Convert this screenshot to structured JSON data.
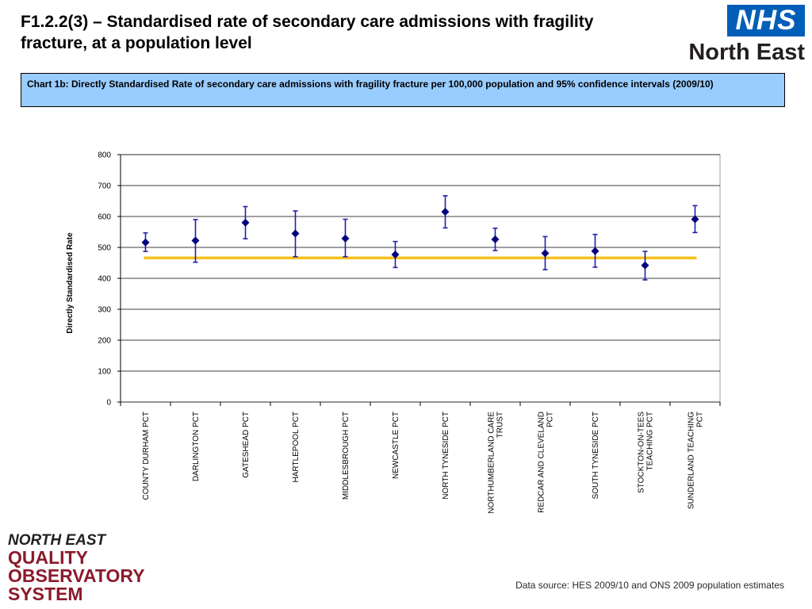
{
  "page": {
    "title": "F1.2.2(3) – Standardised rate of secondary care admissions with fragility fracture, at a population level",
    "data_source": "Data source: HES 2009/10 and ONS 2009 population estimates"
  },
  "logos": {
    "nhs_mark": "NHS",
    "nhs_region": "North East",
    "observatory_lines": [
      "NORTH EAST",
      "QUALITY",
      "OBSERVATORY",
      "SYSTEM"
    ]
  },
  "chart_caption": "Chart 1b: Directly Standardised Rate of secondary care admissions with fragility fracture per 100,000 population and 95% confidence intervals (2009/10)",
  "chart_data": {
    "type": "scatter",
    "ylabel": "Directly Standardised  Rate",
    "ylim": [
      0,
      800
    ],
    "yticks": [
      0,
      100,
      200,
      300,
      400,
      500,
      600,
      700,
      800
    ],
    "grid": true,
    "categories": [
      [
        "COUNTY DURHAM PCT"
      ],
      [
        "DARLINGTON PCT"
      ],
      [
        "GATESHEAD PCT"
      ],
      [
        "HARTLEPOOL PCT"
      ],
      [
        "MIDDLESBROUGH PCT"
      ],
      [
        "NEWCASTLE PCT"
      ],
      [
        "NORTH TYNESIDE PCT"
      ],
      [
        "NORTHUMBERLAND CARE",
        "TRUST"
      ],
      [
        "REDCAR AND CLEVELAND",
        "PCT"
      ],
      [
        "SOUTH TYNESIDE PCT"
      ],
      [
        "STOCKTON-ON-TEES",
        "TEACHING PCT"
      ],
      [
        "SUNDERLAND TEACHING",
        "PCT"
      ]
    ],
    "values": [
      516,
      522,
      580,
      545,
      529,
      477,
      615,
      526,
      481,
      488,
      442,
      591
    ],
    "ci_lower": [
      487,
      452,
      528,
      470,
      470,
      435,
      563,
      490,
      428,
      436,
      395,
      548
    ],
    "ci_upper": [
      547,
      590,
      632,
      618,
      591,
      519,
      667,
      562,
      535,
      542,
      487,
      635
    ],
    "reference_value": 466,
    "colors": {
      "marker": "#000080",
      "error_bar": "#1f1faa",
      "reference_line": "#f5c11b",
      "gridline": "#000000",
      "plot_border": "#a0a0a0"
    }
  }
}
